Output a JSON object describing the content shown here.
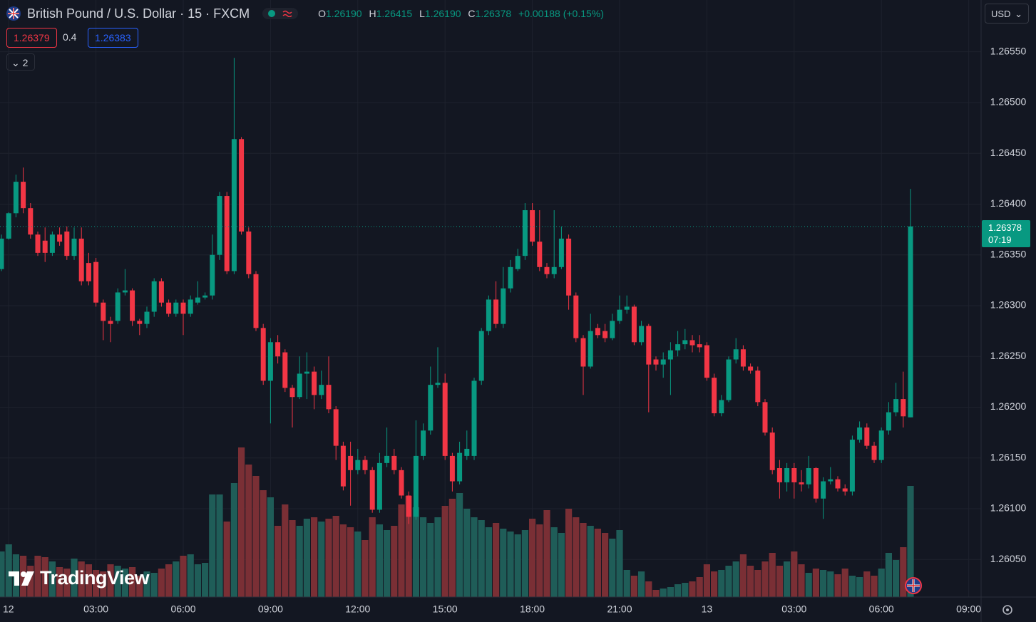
{
  "header": {
    "symbol": "British Pound / U.S. Dollar · 15 · FXCM",
    "ohlc": [
      {
        "label": "O",
        "value": "1.26190"
      },
      {
        "label": "H",
        "value": "1.26415"
      },
      {
        "label": "L",
        "value": "1.26190"
      },
      {
        "label": "C",
        "value": "1.26378"
      }
    ],
    "change": "+0.00188 (+0.15%)",
    "bid": "1.26379",
    "spread": "0.4",
    "ask": "1.26383",
    "indicators": "2",
    "currency": "USD",
    "price_tag": "1.26378",
    "countdown": "07:19",
    "logo": "TradingView"
  },
  "chart_data": {
    "type": "candlestick",
    "up_color": "#089981",
    "down_color": "#f23645",
    "volume_up_color": "#1f5d58",
    "volume_down_color": "#7a2f35",
    "grid": true,
    "ylim": [
      1.26013,
      1.26601
    ],
    "yticks": [
      {
        "value": 1.2605,
        "label": "1.26050"
      },
      {
        "value": 1.261,
        "label": "1.26100"
      },
      {
        "value": 1.2615,
        "label": "1.26150"
      },
      {
        "value": 1.262,
        "label": "1.26200"
      },
      {
        "value": 1.2625,
        "label": "1.26250"
      },
      {
        "value": 1.263,
        "label": "1.26300"
      },
      {
        "value": 1.2635,
        "label": "1.26350"
      },
      {
        "value": 1.264,
        "label": "1.26400"
      },
      {
        "value": 1.2645,
        "label": "1.26450"
      },
      {
        "value": 1.265,
        "label": "1.26500"
      },
      {
        "value": 1.2655,
        "label": "1.26550"
      }
    ],
    "categories": [
      null,
      "12",
      null,
      null,
      null,
      null,
      null,
      null,
      null,
      null,
      null,
      null,
      null,
      "03:00",
      null,
      null,
      null,
      null,
      null,
      null,
      null,
      null,
      null,
      null,
      null,
      "06:00",
      null,
      null,
      null,
      null,
      null,
      null,
      null,
      null,
      null,
      null,
      null,
      "09:00",
      null,
      null,
      null,
      null,
      null,
      null,
      null,
      null,
      null,
      null,
      null,
      "12:00",
      null,
      null,
      null,
      null,
      null,
      null,
      null,
      null,
      null,
      null,
      null,
      "15:00",
      null,
      null,
      null,
      null,
      null,
      null,
      null,
      null,
      null,
      null,
      null,
      "18:00",
      null,
      null,
      null,
      null,
      null,
      null,
      null,
      null,
      null,
      null,
      null,
      "21:00",
      null,
      null,
      null,
      null,
      null,
      null,
      null,
      null,
      null,
      null,
      null,
      "13",
      null,
      null,
      null,
      null,
      null,
      null,
      null,
      null,
      null,
      null,
      null,
      "03:00",
      null,
      null,
      null,
      null,
      null,
      null,
      null,
      null,
      null,
      null,
      null,
      "06:00",
      null,
      null,
      null,
      null,
      null,
      null,
      null,
      null,
      null,
      null,
      null,
      "09:00"
    ],
    "open": [
      1.26336,
      1.26366,
      1.26391,
      1.26422,
      1.26396,
      1.2637,
      1.26364,
      1.26352,
      1.2637,
      1.26373,
      1.26349,
      1.26366,
      1.26342,
      1.26343,
      1.26303,
      1.26285,
      1.26285,
      1.26313,
      1.26315,
      1.26285,
      1.26282,
      1.26294,
      1.26324,
      1.26303,
      1.26292,
      1.26303,
      1.26292,
      1.26303,
      1.26308,
      1.2631,
      1.2635,
      1.26408,
      1.26334,
      1.26464,
      1.26373,
      1.26331,
      1.26278,
      1.26226,
      1.26264,
      1.26254,
      1.26219,
      1.2621,
      1.26233,
      1.26235,
      1.26212,
      1.26222,
      1.26198,
      1.26162,
      1.26152,
      1.26138,
      1.26148,
      1.26138,
      1.26099,
      1.26145,
      1.26152,
      1.26138,
      1.26113,
      1.26092,
      1.26152,
      1.26177,
      1.26222,
      1.26224,
      1.26152,
      1.26127,
      1.26152,
      1.26152,
      1.26226,
      1.26275,
      1.26306,
      1.26282,
      1.26317,
      1.26336,
      1.26349,
      1.26394,
      1.26363,
      1.26338,
      1.26331,
      1.26338,
      1.26366,
      1.2631,
      1.26268,
      1.2624,
      1.26278,
      1.26275,
      1.26268,
      1.26285,
      1.26296,
      1.26299,
      1.26264,
      1.2628,
      1.26247,
      1.26242,
      1.26247,
      1.26256,
      1.26262,
      1.26266,
      1.26262,
      1.26261,
      1.26229,
      1.26194,
      1.26207,
      1.26247,
      1.26257,
      1.2624,
      1.26236,
      1.26205,
      1.26175,
      1.2614,
      1.26126,
      1.2614,
      1.26126,
      1.26124,
      1.2614,
      1.2611,
      1.26127,
      1.26129,
      1.2612,
      1.26117,
      1.26168,
      1.2618,
      1.26162,
      1.26148,
      1.26177,
      1.26195,
      1.26208,
      1.2619,
      null,
      null,
      null,
      null,
      null,
      null,
      null,
      null
    ],
    "high": [
      1.2637,
      1.26392,
      1.26429,
      1.26436,
      1.26401,
      1.26373,
      1.26377,
      1.26373,
      1.26377,
      1.26378,
      1.26377,
      1.26377,
      1.26352,
      1.26347,
      1.26306,
      1.26289,
      1.26317,
      1.26336,
      1.26317,
      1.26287,
      1.26299,
      1.26327,
      1.26327,
      1.26306,
      1.26306,
      1.26306,
      1.2631,
      1.26324,
      1.26313,
      1.2637,
      1.26412,
      1.26412,
      1.26544,
      1.26466,
      1.26377,
      1.26334,
      1.26282,
      1.26268,
      1.26271,
      1.26257,
      1.26222,
      1.2625,
      1.26254,
      1.2624,
      1.26236,
      1.2625,
      1.26201,
      1.26166,
      1.26166,
      1.26159,
      1.26152,
      1.26141,
      1.26155,
      1.2618,
      1.26159,
      1.26141,
      1.26117,
      1.26187,
      1.26184,
      1.2624,
      1.26259,
      1.26233,
      1.26155,
      1.26166,
      1.26177,
      1.26229,
      1.26278,
      1.2631,
      1.26324,
      1.26338,
      1.26345,
      1.26356,
      1.26401,
      1.26401,
      1.26394,
      1.26342,
      1.26394,
      1.26378,
      1.2637,
      1.26313,
      1.26271,
      1.26292,
      1.26282,
      1.26282,
      1.26292,
      1.2631,
      1.2631,
      1.26301,
      1.26285,
      1.26282,
      1.2625,
      1.26254,
      1.26264,
      1.26275,
      1.26277,
      1.26271,
      1.26271,
      1.26264,
      1.26233,
      1.26212,
      1.2625,
      1.26268,
      1.26261,
      1.26243,
      1.2624,
      1.26208,
      1.2618,
      1.26148,
      1.26145,
      1.26145,
      1.26138,
      1.26152,
      1.26141,
      1.26131,
      1.26141,
      1.26132,
      1.26124,
      1.26172,
      1.26186,
      1.26184,
      1.26166,
      1.2618,
      1.26205,
      1.26224,
      1.26235,
      1.26415,
      null,
      null,
      null,
      null,
      null,
      null,
      null,
      null
    ],
    "low": [
      1.26334,
      1.26365,
      1.26387,
      1.26391,
      1.26366,
      1.26349,
      1.26343,
      1.26349,
      1.26359,
      1.26345,
      1.26345,
      1.2632,
      1.2632,
      1.26299,
      1.26266,
      1.26264,
      1.26282,
      1.2631,
      1.2628,
      1.26271,
      1.26278,
      1.26289,
      1.26299,
      1.26289,
      1.26289,
      1.26271,
      1.26289,
      1.26301,
      1.26306,
      1.26306,
      1.26345,
      1.26331,
      1.26331,
      1.2637,
      1.26327,
      1.26275,
      1.26222,
      1.26184,
      1.26243,
      1.26215,
      1.2618,
      1.26208,
      1.26208,
      1.26198,
      1.26208,
      1.26194,
      1.26148,
      1.26118,
      1.26103,
      1.26134,
      1.26134,
      1.26096,
      1.26096,
      1.26141,
      1.26134,
      1.2611,
      1.26085,
      1.26089,
      1.26148,
      1.26173,
      1.26219,
      1.26148,
      1.26117,
      1.26124,
      1.26148,
      1.26148,
      1.26222,
      1.26271,
      1.26278,
      1.26278,
      1.26313,
      1.26334,
      1.26345,
      1.26359,
      1.26334,
      1.26327,
      1.26327,
      1.26336,
      1.26296,
      1.26264,
      1.26212,
      1.26238,
      1.26268,
      1.26264,
      1.26266,
      1.26282,
      1.26292,
      1.26261,
      1.26261,
      1.26195,
      1.26236,
      1.26229,
      1.26212,
      1.2625,
      1.26257,
      1.26254,
      1.26254,
      1.26226,
      1.26191,
      1.26191,
      1.26205,
      1.26243,
      1.26236,
      1.26233,
      1.26201,
      1.26172,
      1.26134,
      1.2611,
      1.26117,
      1.2611,
      1.26117,
      1.2612,
      1.26106,
      1.2609,
      1.26124,
      1.26117,
      1.26113,
      1.26113,
      1.26165,
      1.26159,
      1.26145,
      1.26145,
      1.26173,
      1.26191,
      1.2618,
      1.2619,
      null,
      null,
      null,
      null,
      null,
      null,
      null,
      null
    ],
    "close": [
      1.26366,
      1.26391,
      1.26422,
      1.26396,
      1.2637,
      1.26352,
      1.26352,
      1.2637,
      1.26363,
      1.26349,
      1.26366,
      1.26324,
      1.26324,
      1.26303,
      1.26285,
      1.26282,
      1.26313,
      1.26315,
      1.26285,
      1.26282,
      1.26294,
      1.26324,
      1.26303,
      1.26292,
      1.26303,
      1.26292,
      1.26306,
      1.26308,
      1.2631,
      1.2635,
      1.26408,
      1.26334,
      1.26464,
      1.26373,
      1.26331,
      1.26278,
      1.26226,
      1.26264,
      1.2625,
      1.26219,
      1.2621,
      1.26233,
      1.26235,
      1.26212,
      1.26222,
      1.26198,
      1.26162,
      1.26122,
      1.26138,
      1.26148,
      1.26138,
      1.26099,
      1.26145,
      1.26152,
      1.26138,
      1.26113,
      1.26092,
      1.26152,
      1.26177,
      1.26222,
      1.26224,
      1.26152,
      1.26127,
      1.26155,
      1.26159,
      1.26226,
      1.26275,
      1.26306,
      1.26282,
      1.26317,
      1.26338,
      1.26349,
      1.26394,
      1.26363,
      1.26338,
      1.26331,
      1.26338,
      1.26366,
      1.2631,
      1.26268,
      1.2624,
      1.26275,
      1.26271,
      1.26268,
      1.26285,
      1.26296,
      1.26299,
      1.26264,
      1.2628,
      1.26242,
      1.26242,
      1.26247,
      1.26256,
      1.26262,
      1.26266,
      1.26261,
      1.26259,
      1.26229,
      1.26194,
      1.26207,
      1.26247,
      1.26257,
      1.2624,
      1.26236,
      1.26205,
      1.26175,
      1.26138,
      1.26126,
      1.2614,
      1.26126,
      1.26124,
      1.2614,
      1.2611,
      1.26127,
      1.26129,
      1.2612,
      1.26117,
      1.26168,
      1.2618,
      1.26162,
      1.26148,
      1.26177,
      1.26195,
      1.26208,
      1.26191,
      1.26378,
      null,
      null,
      null,
      null,
      null,
      null,
      null,
      null
    ],
    "volume": [
      64,
      74,
      60,
      58,
      44,
      58,
      56,
      50,
      42,
      40,
      54,
      50,
      46,
      38,
      36,
      46,
      44,
      40,
      42,
      30,
      36,
      34,
      40,
      46,
      50,
      58,
      60,
      46,
      48,
      144,
      144,
      106,
      160,
      210,
      186,
      170,
      150,
      140,
      100,
      130,
      108,
      100,
      110,
      112,
      106,
      110,
      114,
      102,
      98,
      92,
      80,
      112,
      102,
      94,
      100,
      130,
      142,
      126,
      112,
      104,
      112,
      128,
      138,
      146,
      124,
      112,
      108,
      98,
      104,
      96,
      92,
      88,
      94,
      110,
      102,
      122,
      98,
      90,
      124,
      112,
      104,
      100,
      96,
      90,
      82,
      94,
      38,
      30,
      36,
      22,
      10,
      12,
      14,
      18,
      20,
      22,
      28,
      46,
      36,
      38,
      44,
      50,
      60,
      44,
      38,
      50,
      62,
      44,
      50,
      64,
      46,
      34,
      40,
      38,
      36,
      32,
      40,
      30,
      28,
      36,
      30,
      40,
      62,
      52,
      70,
      156,
      null,
      null,
      null,
      null,
      null,
      null,
      null,
      null
    ]
  }
}
